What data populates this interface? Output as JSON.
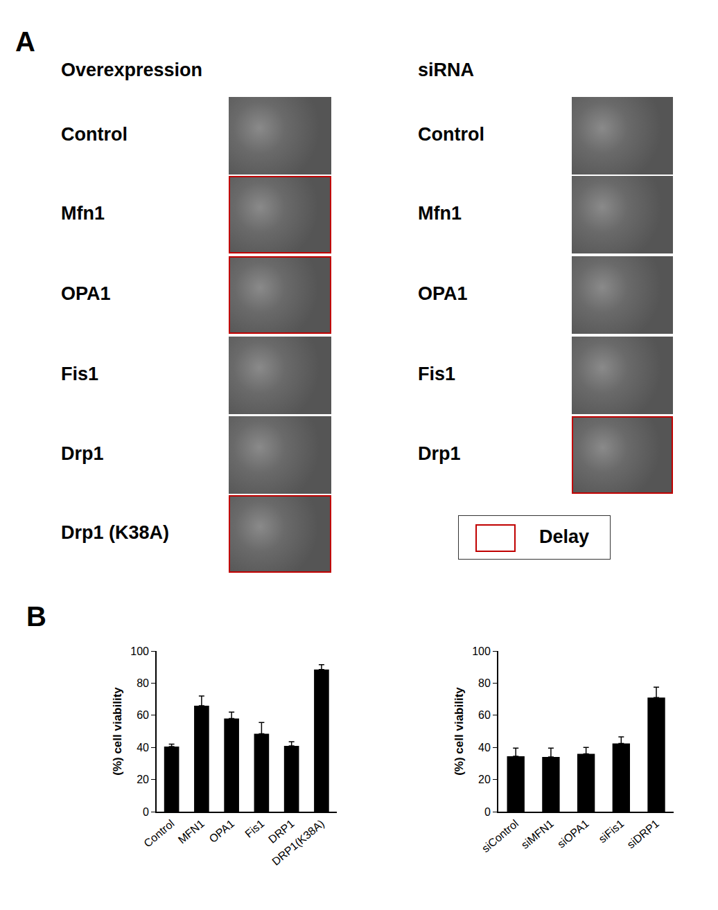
{
  "panel_labels": [
    "A",
    "B"
  ],
  "images": [
    {
      "heading": "Overexpression",
      "rows": [
        {
          "label": "Control",
          "delay": false
        },
        {
          "label": "Mfn1",
          "delay": true
        },
        {
          "label": "OPA1",
          "delay": true
        },
        {
          "label": "Fis1",
          "delay": false
        },
        {
          "label": "Drp1",
          "delay": false
        },
        {
          "label": "Drp1 (K38A)",
          "delay": true
        }
      ]
    },
    {
      "heading": "siRNA",
      "rows": [
        {
          "label": "Control",
          "delay": false
        },
        {
          "label": "Mfn1",
          "delay": false
        },
        {
          "label": "OPA1",
          "delay": false
        },
        {
          "label": "Fis1",
          "delay": false
        },
        {
          "label": "Drp1",
          "delay": true
        }
      ]
    }
  ],
  "legend_text": "Delay",
  "chart_data": [
    {
      "type": "bar",
      "y_label": "(%) cell viability",
      "categories": [
        "Control",
        "MFN1",
        "OPA1",
        "Fis1",
        "DRP1",
        "DRP1(K38A)"
      ],
      "values": [
        40.5,
        66,
        58,
        48.5,
        41,
        88.5
      ],
      "errors": [
        1.5,
        6,
        4,
        7,
        2.5,
        3
      ],
      "color": "#000000",
      "ylim": [
        0,
        100
      ],
      "yticks": [
        0,
        20,
        40,
        60,
        80,
        100
      ],
      "grid": false
    },
    {
      "type": "bar",
      "y_label": "(%) cell viability",
      "categories": [
        "siControl",
        "siMFN1",
        "siOPA1",
        "siFis1",
        "siDRP1"
      ],
      "values": [
        34.5,
        34,
        36,
        42.5,
        71
      ],
      "errors": [
        5,
        5.5,
        4,
        4,
        6.5
      ],
      "color": "#000000",
      "ylim": [
        0,
        100
      ],
      "yticks": [
        0,
        20,
        40,
        60,
        80,
        100
      ],
      "grid": false
    }
  ]
}
